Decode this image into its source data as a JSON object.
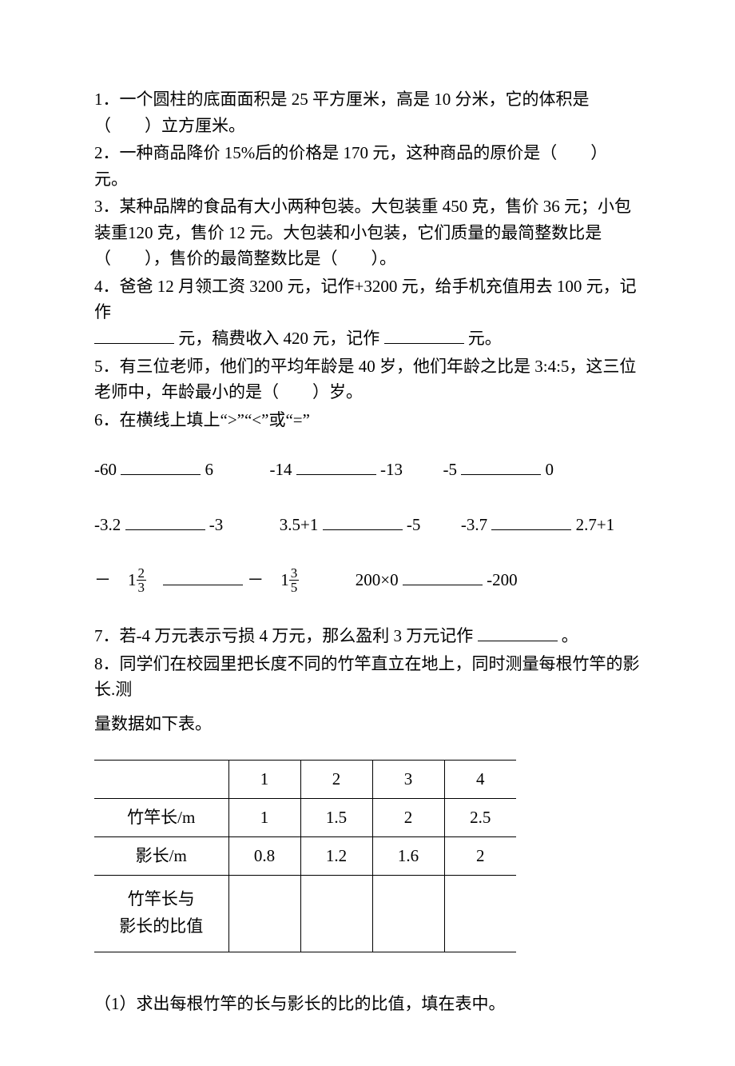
{
  "q1": "1．一个圆柱的底面面积是 25 平方厘米，高是 10 分米，它的体积是（　　）立方厘米。",
  "q2": "2．一种商品降价 15%后的价格是 170 元，这种商品的原价是（　　）元。",
  "q3": "3．某种品牌的食品有大小两种包装。大包装重 450 克，售价 36 元；小包装重120 克，售价 12 元。大包装和小包装，它们质量的最简整数比是（　　），售价的最简整数比是（　　）。",
  "q4_a": "4．爸爸 12 月领工资 3200 元，记作+3200 元，给手机充值用去 100 元，记作",
  "q4_b": "元，稿费收入 420 元，记作",
  "q4_c": "元。",
  "q5": "5．有三位老师，他们的平均年龄是 40 岁，他们年龄之比是 3:4:5，这三位老师中，年龄最小的是（　　）岁。",
  "q6": "6．在横线上填上“>”“<”或“=”",
  "r1": {
    "a": "-60",
    "b": "6",
    "c": "-14",
    "d": "-13",
    "e": "-5",
    "f": "0"
  },
  "r2": {
    "a": "-3.2",
    "b": "-3",
    "c": "3.5+1",
    "d": "-5",
    "e": "-3.7",
    "f": "2.7+1"
  },
  "r3": {
    "pre1": "－　1",
    "n1": "2",
    "d1": "3",
    "pre2": "－　1",
    "n2": "3",
    "d2": "5",
    "c": "200×0",
    "d": "-200"
  },
  "q7_a": "7．若-4 万元表示亏损 4 万元，那么盈利 3 万元记作",
  "q7_b": "。",
  "q8_a": "8．同学们在校园里把长度不同的竹竿直立在地上，同时测量每根竹竿的影长.测",
  "q8_b": "量数据如下表。",
  "table": {
    "head": [
      "",
      "1",
      "2",
      "3",
      "4"
    ],
    "rows": [
      [
        "竹竿长/m",
        "1",
        "1.5",
        "2",
        "2.5"
      ],
      [
        "影长/m",
        "0.8",
        "1.2",
        "1.6",
        "2"
      ]
    ],
    "tall_label_l1": "竹竿长与",
    "tall_label_l2": "影长的比值"
  },
  "sub1": "（1）求出每根竹竿的长与影长的比的比值，填在表中。"
}
